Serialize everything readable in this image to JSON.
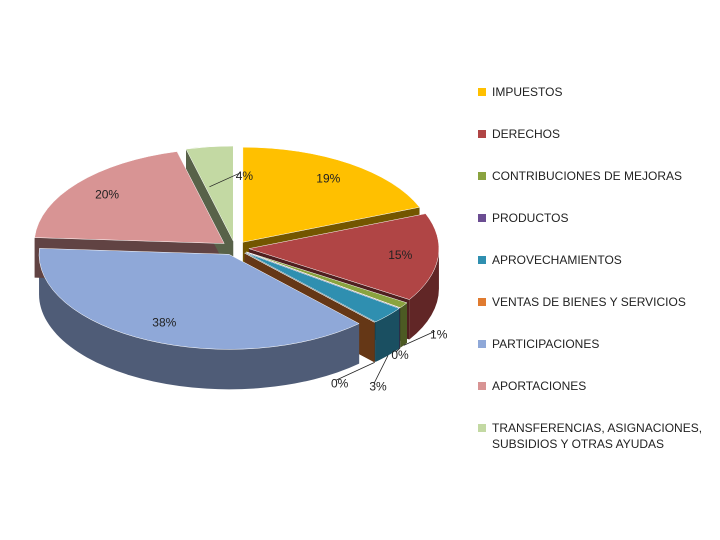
{
  "chart_data": {
    "type": "pie",
    "categories": [
      "IMPUESTOS",
      "DERECHOS",
      "CONTRIBUCIONES DE MEJORAS",
      "PRODUCTOS",
      "APROVECHAMIENTOS",
      "VENTAS DE BIENES Y SERVICIOS",
      "PARTICIPACIONES",
      "APORTACIONES",
      "TRANSFERENCIAS, ASIGNACIONES, SUBSIDIOS Y OTRAS AYUDAS"
    ],
    "values": [
      19,
      15,
      1,
      0,
      3,
      0,
      38,
      20,
      4
    ],
    "value_labels": [
      "19%",
      "15%",
      "1%",
      "0%",
      "3%",
      "0%",
      "38%",
      "20%",
      "4%"
    ],
    "colors": [
      "#ffc000",
      "#b04545",
      "#8aa33f",
      "#6b4d92",
      "#2f8fb0",
      "#e07b30",
      "#8fa8d8",
      "#d89494",
      "#c3d9a3"
    ],
    "legend": "right"
  }
}
